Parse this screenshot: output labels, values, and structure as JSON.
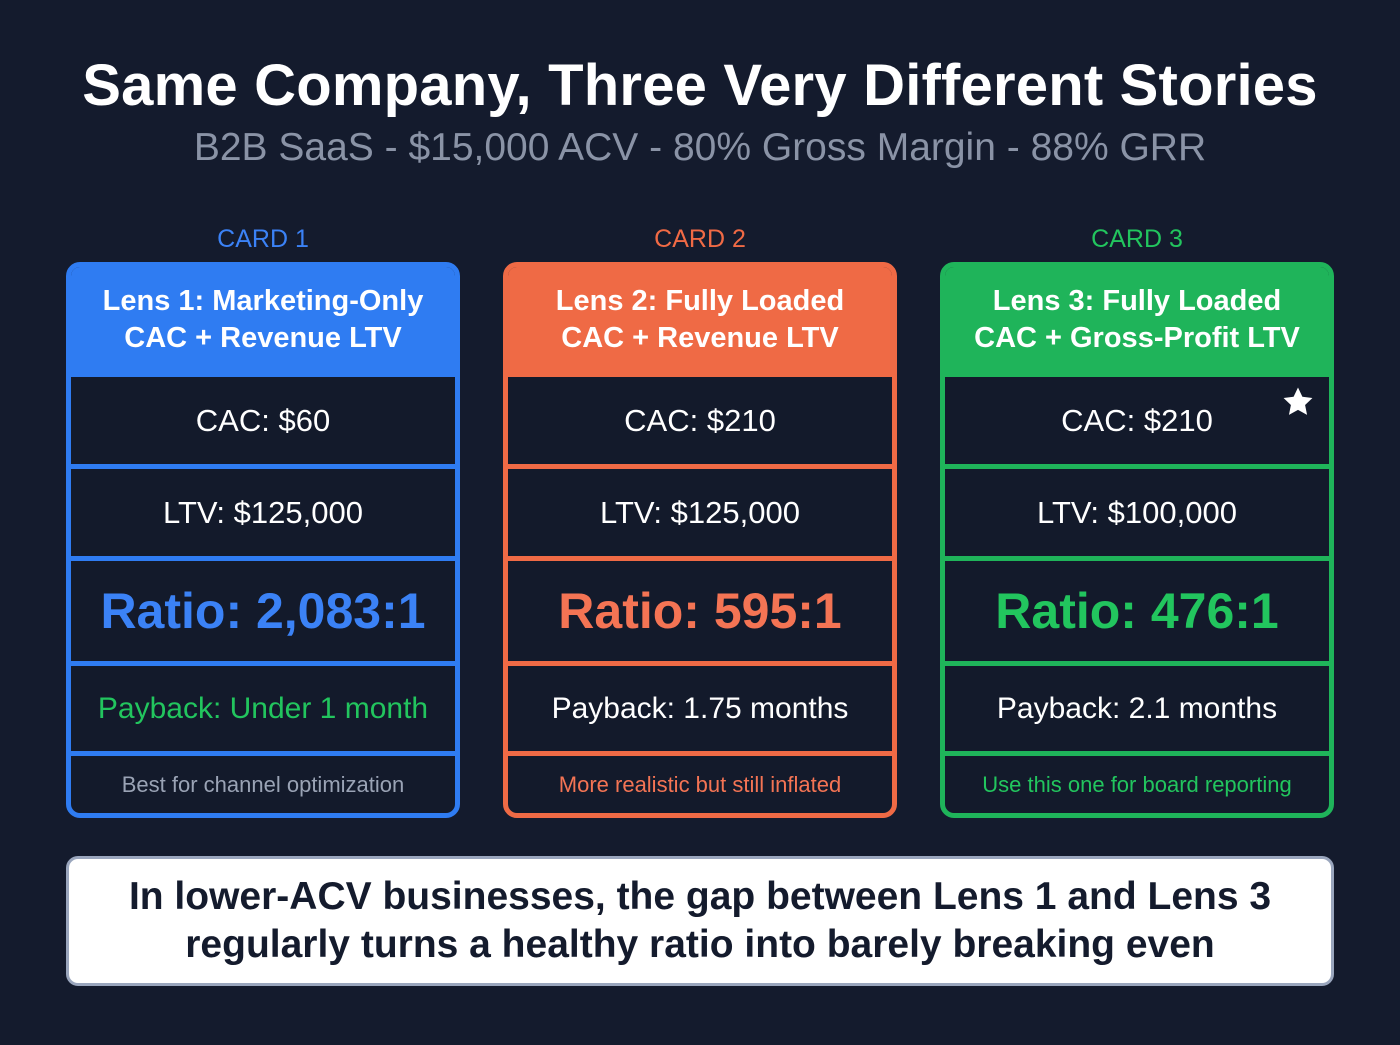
{
  "header": {
    "title": "Same Company, Three Very Different Stories",
    "subtitle": "B2B SaaS - $15,000 ACV - 80% Gross Margin - 88% GRR"
  },
  "cards": [
    {
      "label": "CARD 1",
      "heading_line1": "Lens 1: Marketing-Only",
      "heading_line2": "CAC + Revenue LTV",
      "cac": "CAC: $60",
      "ltv": "LTV: $125,000",
      "ratio": "Ratio: 2,083:1",
      "payback": "Payback: Under 1 month",
      "note": "Best for channel optimization",
      "color": "#2f7cf2"
    },
    {
      "label": "CARD 2",
      "heading_line1": "Lens 2: Fully Loaded",
      "heading_line2": "CAC + Revenue LTV",
      "cac": "CAC: $210",
      "ltv": "LTV: $125,000",
      "ratio": "Ratio: 595:1",
      "payback": "Payback: 1.75 months",
      "note": "More realistic but still inflated",
      "color": "#ef6a45"
    },
    {
      "label": "CARD 3",
      "heading_line1": "Lens 3: Fully Loaded",
      "heading_line2": "CAC + Gross-Profit LTV",
      "cac": "CAC: $210",
      "ltv": "LTV: $100,000",
      "ratio": "Ratio: 476:1",
      "payback": "Payback: 2.1 months",
      "note": "Use this one for board reporting",
      "color": "#1fb45a",
      "badge_icon": "star-icon"
    }
  ],
  "callout": {
    "line1": "In lower-ACV businesses, the gap between Lens 1 and Lens 3",
    "line2": "regularly turns a healthy ratio into barely breaking even"
  },
  "colors": {
    "background": "#141b2d",
    "blue": "#2f7cf2",
    "orange": "#ef6a45",
    "green": "#1fb45a"
  }
}
